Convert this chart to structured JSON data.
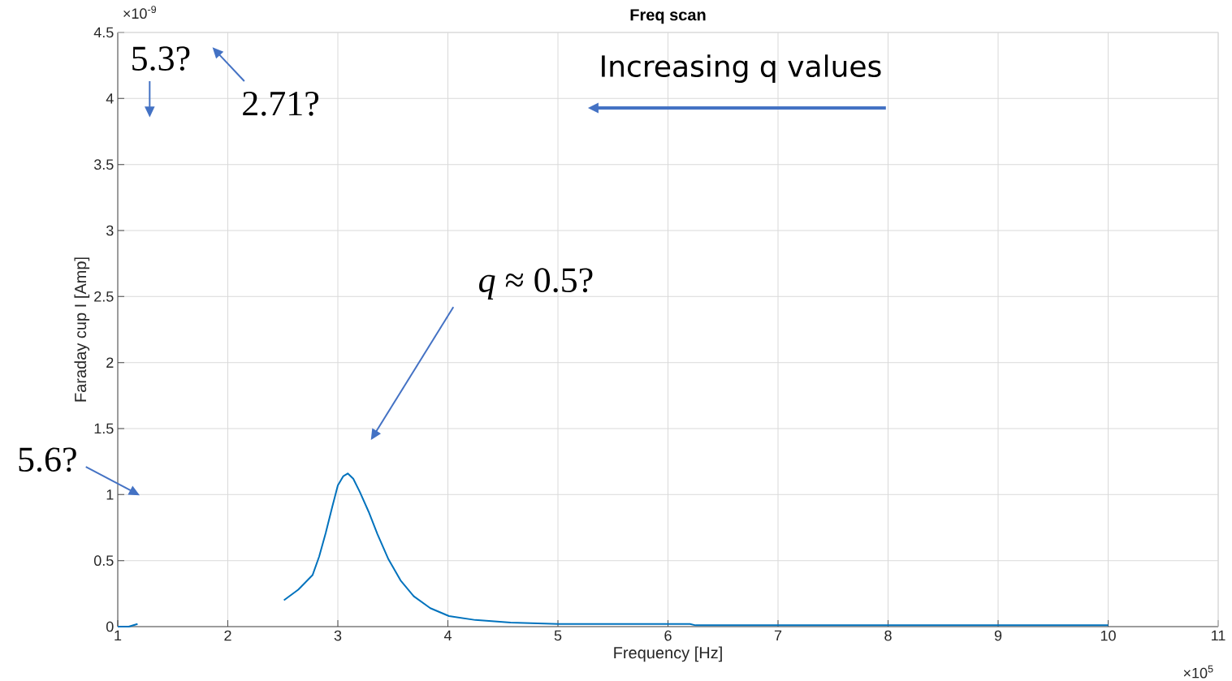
{
  "chart_data": {
    "type": "line",
    "title": "Freq scan",
    "xlabel": "Frequency [Hz]",
    "ylabel": "Faraday cup I [Amp]",
    "xlim": [
      1,
      11
    ],
    "xticks": [
      1,
      2,
      3,
      4,
      5,
      6,
      7,
      8,
      9,
      10,
      11
    ],
    "ylim": [
      0,
      4.5
    ],
    "yticks": [
      0,
      0.5,
      1,
      1.5,
      2,
      2.5,
      3,
      3.5,
      4,
      4.5
    ],
    "grid": true,
    "series": [
      {
        "color": "#0072bd",
        "x": [
          1,
          1.1,
          1.18,
          1.25,
          2.51,
          2.64,
          2.77,
          2.83,
          2.89,
          2.95,
          3.0,
          3.05,
          3.09,
          3.14,
          3.2,
          3.28,
          3.36,
          3.46,
          3.57,
          3.69,
          3.84,
          4.01,
          4.25,
          4.57,
          5.0,
          6.2,
          6.25,
          10.0
        ],
        "values": [
          0,
          0,
          0.02,
          null,
          0.2,
          0.28,
          0.39,
          0.53,
          0.71,
          0.91,
          1.07,
          1.14,
          1.16,
          1.12,
          1.02,
          0.87,
          0.7,
          0.51,
          0.35,
          0.23,
          0.14,
          0.08,
          0.05,
          0.03,
          0.02,
          0.02,
          0.01,
          0.01
        ]
      }
    ],
    "annotations": [
      "×10$^{-9}$",
      "×10$^{5}$",
      "5.3?",
      "2.71?",
      "5.6?",
      "*q* ≈ 0.5?",
      "Increasing q values"
    ]
  }
}
